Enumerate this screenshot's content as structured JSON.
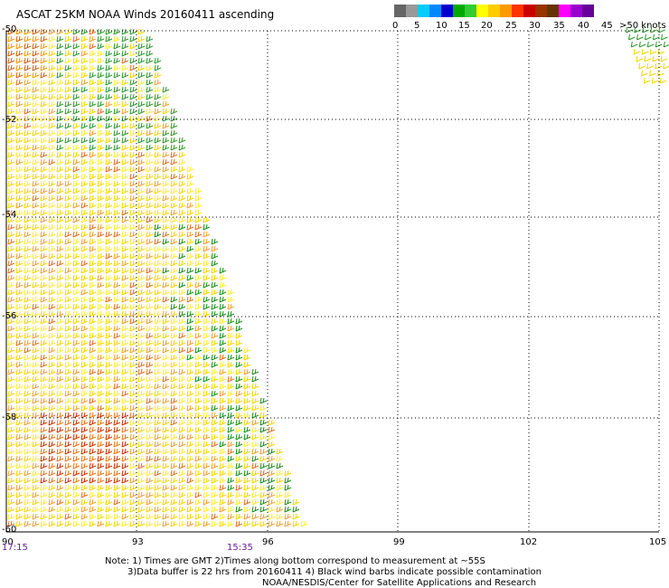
{
  "title": "ASCAT 25KM NOAA Winds 20160411 ascending",
  "legend": {
    "colors": [
      "#666666",
      "#999999",
      "#00ccff",
      "#0088ff",
      "#0000cc",
      "#00aa00",
      "#33cc33",
      "#ffff00",
      "#ffcc00",
      "#ff9900",
      "#ff3300",
      "#cc0000",
      "#993300",
      "#663300",
      "#ff00ff",
      "#9900cc",
      "#660099"
    ],
    "labels": [
      "0",
      "5",
      "10",
      "15",
      "20",
      "25",
      "30",
      "35",
      "40",
      "45",
      ">50 knots"
    ]
  },
  "lat_labels": [
    "-50",
    "-52",
    "-54",
    "-56",
    "-58",
    "-60"
  ],
  "lon_labels": [
    "90",
    "93",
    "96",
    "99",
    "102",
    "105"
  ],
  "time_labels": [
    "17:15",
    "15:35"
  ],
  "notes": [
    "Note: 1) Times are GMT 2)Times along bottom correspond to measurement at ~55S",
    "3)Data buffer is 22 hrs from 20160411 4) Black wind barbs indicate possible contamination",
    "NOAA/NESDIS/Center for Satellite Applications and Research"
  ]
}
